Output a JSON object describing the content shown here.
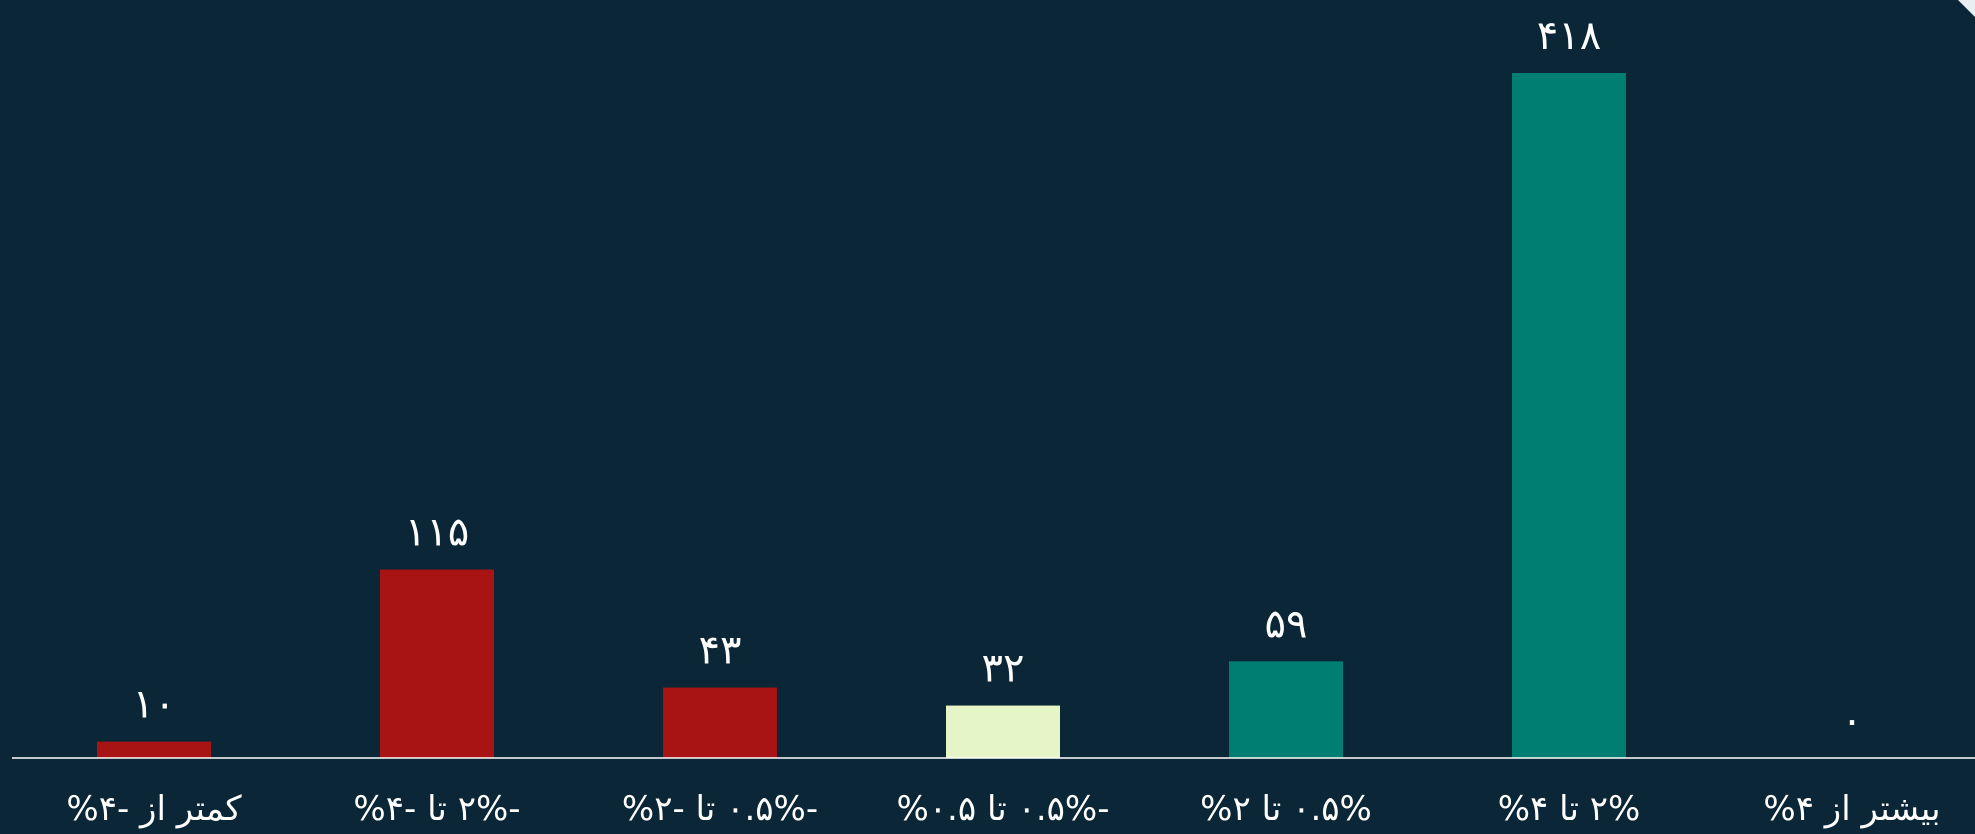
{
  "chart_data": {
    "type": "bar",
    "categories": [
      "کمتر از -۴%",
      "-۲% تا -۴%",
      "-۰.۵% تا -۲%",
      "-۰.۵% تا ۰.۵%",
      "۰.۵% تا ۲%",
      "۲% تا ۴%",
      "بیشتر از ۴%"
    ],
    "values": [
      10,
      115,
      43,
      32,
      59,
      418,
      0
    ],
    "value_labels": [
      "۱۰",
      "۱۱۵",
      "۴۳",
      "۳۲",
      "۵۹",
      "۴۱۸",
      "۰"
    ],
    "bar_colors": [
      "#a81414",
      "#a81414",
      "#a81414",
      "#e6f5c7",
      "#007e72",
      "#007e72",
      "#007e72"
    ],
    "title": "",
    "xlabel": "",
    "ylabel": "",
    "ylim": [
      0,
      418
    ],
    "grid": false,
    "legend": "none"
  },
  "colors": {
    "background": "#0b2636",
    "axis": "#ffffff",
    "text": "#ffffff"
  }
}
